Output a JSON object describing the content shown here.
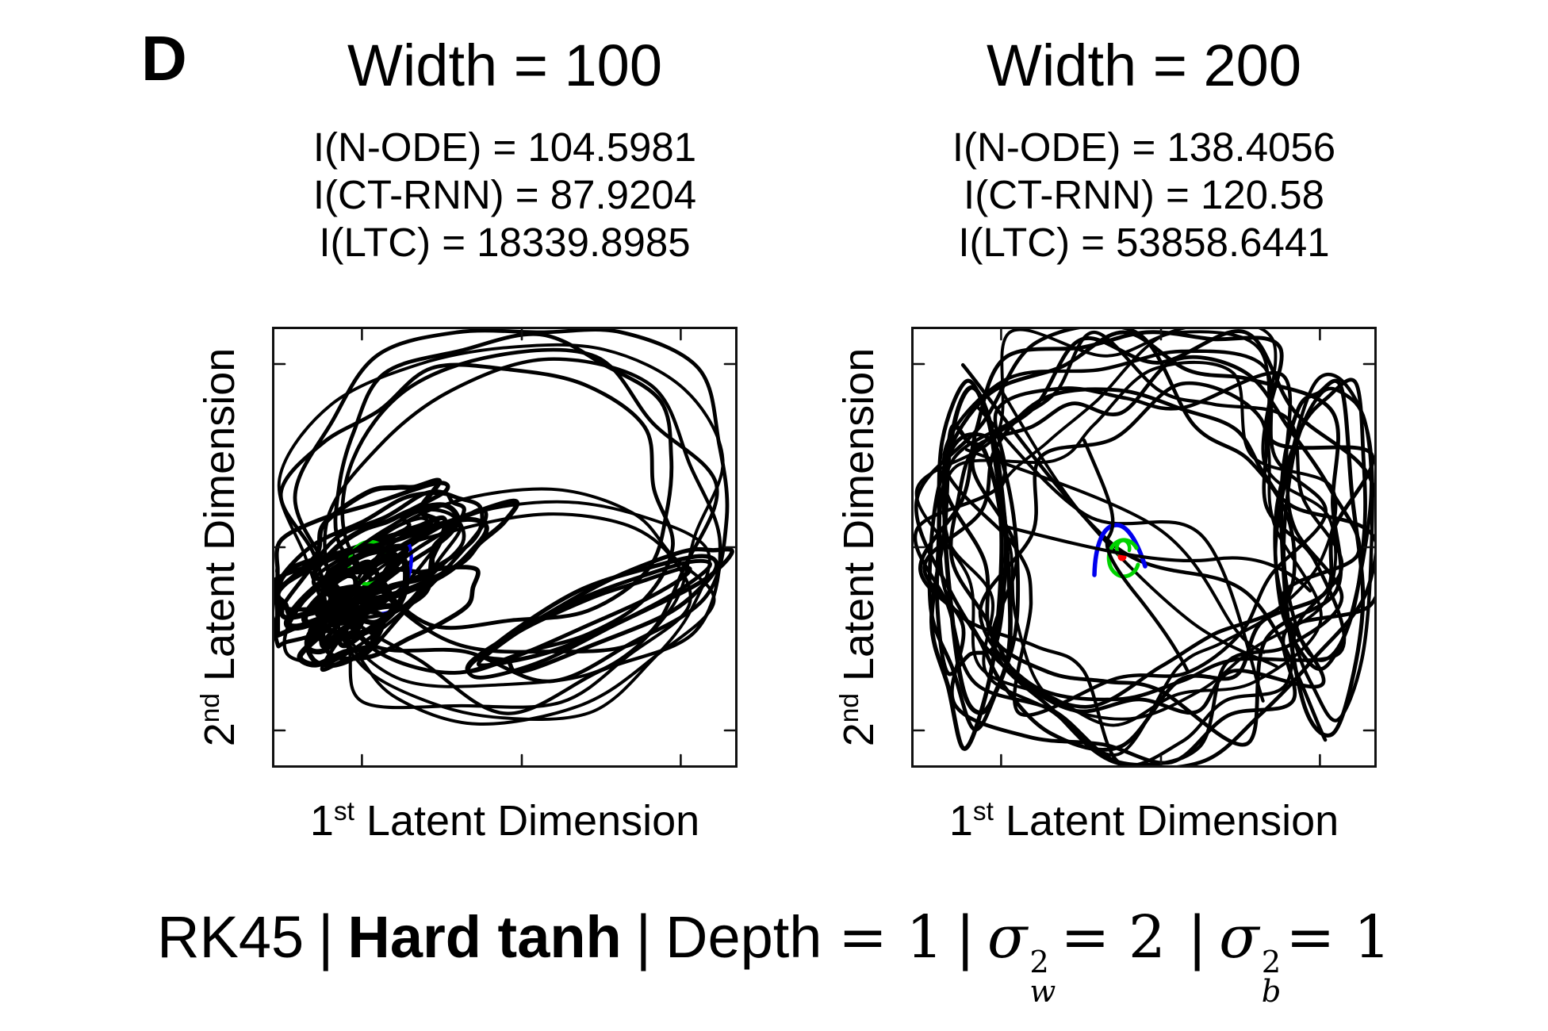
{
  "panel_label": "D",
  "plots": [
    {
      "title": "Width = 100",
      "stats": [
        "I(N-ODE) = 104.5981",
        "I(CT-RNN) = 87.9204",
        "I(LTC) = 18339.8985"
      ],
      "xlabel": {
        "num": "1",
        "sup": "st",
        "rest": " Latent Dimension"
      },
      "ylabel": {
        "num": "2",
        "sup": "nd",
        "rest": " Latent Dimension"
      }
    },
    {
      "title": "Width = 200",
      "stats": [
        "I(N-ODE) = 138.4056",
        "I(CT-RNN) = 120.58",
        "I(LTC) = 53858.6441"
      ],
      "xlabel": {
        "num": "1",
        "sup": "st",
        "rest": " Latent Dimension"
      },
      "ylabel": {
        "num": "2",
        "sup": "nd",
        "rest": " Latent Dimension"
      }
    }
  ],
  "caption": {
    "solver": "RK45",
    "pipe": "|",
    "activation": "Hard tanh",
    "depth_label": "Depth",
    "depth_eq": "= 1",
    "sigma": "σ",
    "w_sup": "2",
    "w_sub": "w",
    "w_eq": "= 2",
    "b_sup": "2",
    "b_sub": "b",
    "b_eq": "= 1"
  },
  "colors": {
    "ltc_trajectory": "#000000",
    "node_trajectory": "#0000ee",
    "ctrnn_trajectory": "#00d300",
    "start_point": "#ff0000",
    "axis_box": "#111111"
  },
  "chart_data": [
    {
      "type": "line",
      "subtype": "2d-latent-space-trajectory",
      "title": "Width = 100",
      "xlabel": "1st Latent Dimension",
      "ylabel": "2nd Latent Dimension",
      "tick_labels_shown": false,
      "grid": false,
      "legend": "none",
      "box": true,
      "series": [
        {
          "name": "LTC",
          "color": "#000000",
          "trajectory_length": 18339.8985,
          "description": "dense tangled black trajectory; heavy knot in the lower-left/center-left, large circular sweeps across the top and right, long diagonal band loops toward the lower right"
        },
        {
          "name": "N-ODE",
          "color": "#0000ee",
          "trajectory_length": 104.5981,
          "description": "short blue arc fragments near the center-left, mostly occluded by the black trajectory"
        },
        {
          "name": "CT-RNN",
          "color": "#00d300",
          "trajectory_length": 87.9204,
          "description": "small green loop fragments near the center-left, mostly occluded by the black trajectory"
        }
      ]
    },
    {
      "type": "line",
      "subtype": "2d-latent-space-trajectory",
      "title": "Width = 200",
      "xlabel": "1st Latent Dimension",
      "ylabel": "2nd Latent Dimension",
      "tick_labels_shown": false,
      "grid": false,
      "legend": "none",
      "box": true,
      "series": [
        {
          "name": "LTC",
          "color": "#000000",
          "trajectory_length": 53858.6441,
          "description": "round yarn-ball tangle filling the axes, densest along the left and right edges, sparser open center"
        },
        {
          "name": "N-ODE",
          "color": "#0000ee",
          "trajectory_length": 138.4056,
          "description": "small blue arch just left of center"
        },
        {
          "name": "CT-RNN",
          "color": "#00d300",
          "trajectory_length": 120.58,
          "description": "small green open circle with inner curl at center"
        },
        {
          "name": "start point",
          "color": "#ff0000",
          "marker": "dot",
          "description": "red dot at the trajectory origin in the center"
        }
      ]
    }
  ]
}
